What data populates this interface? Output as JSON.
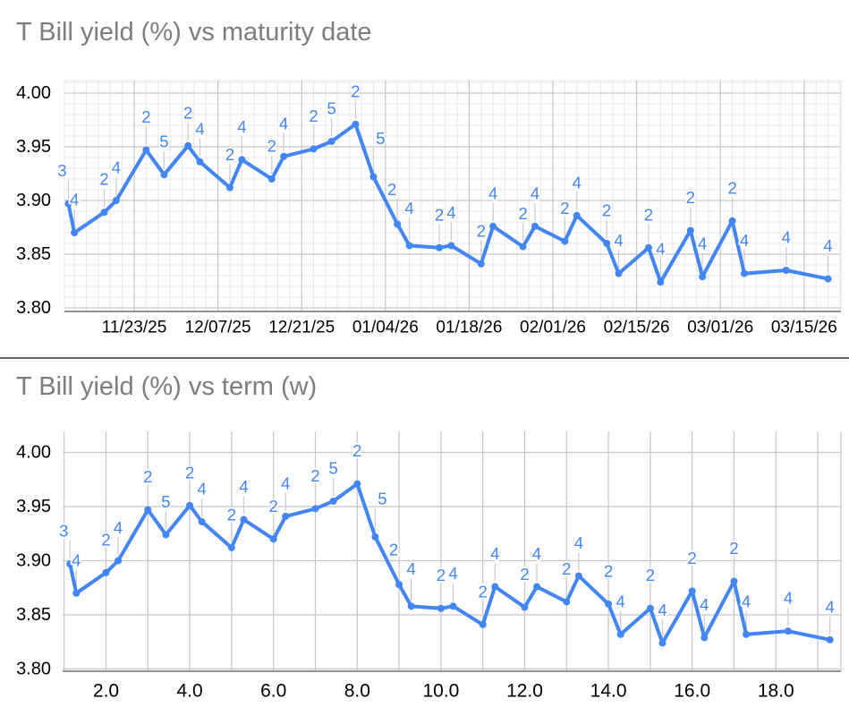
{
  "style": {
    "series_color": "#4285f4",
    "title_color": "#7d7d7d",
    "axis_text_color": "#000000",
    "grid_major_color": "#c6c6c6",
    "grid_minor_color": "#e9e9e9",
    "axis_line_color": "#858585",
    "leader_line_color": "#cccccc",
    "divider_color": "#666666",
    "background": "#ffffff"
  },
  "chart_data": [
    {
      "type": "line",
      "title": "T Bill yield (%) vs maturity date",
      "xlabel": "maturity date",
      "ylabel": "T Bill yield (%)",
      "legend": "none",
      "grid": "minor-and-major",
      "x_tick_labels": [
        "11/23/25",
        "12/07/25",
        "12/21/25",
        "01/04/26",
        "01/18/26",
        "02/01/26",
        "02/15/26",
        "03/01/26",
        "03/15/26"
      ],
      "y_tick_labels": [
        "4.00",
        "3.95",
        "3.90",
        "3.85",
        "3.80"
      ],
      "ylim": [
        3.795,
        4.012
      ],
      "points": [
        {
          "x": "11/12/25",
          "y": 3.897,
          "label": "3"
        },
        {
          "x": "11/13/25",
          "y": 3.87,
          "label": "4"
        },
        {
          "x": "11/18/25",
          "y": 3.889,
          "label": "2"
        },
        {
          "x": "11/20/25",
          "y": 3.9,
          "label": "4"
        },
        {
          "x": "11/25/25",
          "y": 3.947,
          "label": "2"
        },
        {
          "x": "11/28/25",
          "y": 3.924,
          "label": "5"
        },
        {
          "x": "12/02/25",
          "y": 3.951,
          "label": "2"
        },
        {
          "x": "12/04/25",
          "y": 3.936,
          "label": "4"
        },
        {
          "x": "12/09/25",
          "y": 3.912,
          "label": "2"
        },
        {
          "x": "12/11/25",
          "y": 3.938,
          "label": "4"
        },
        {
          "x": "12/16/25",
          "y": 3.92,
          "label": "2"
        },
        {
          "x": "12/18/25",
          "y": 3.941,
          "label": "4"
        },
        {
          "x": "12/23/25",
          "y": 3.948,
          "label": "2"
        },
        {
          "x": "12/26/25",
          "y": 3.955,
          "label": "5"
        },
        {
          "x": "12/30/25",
          "y": 3.971,
          "label": "2"
        },
        {
          "x": "01/02/26",
          "y": 3.922,
          "label": "5"
        },
        {
          "x": "01/06/26",
          "y": 3.878,
          "label": "2"
        },
        {
          "x": "01/08/26",
          "y": 3.858,
          "label": "4"
        },
        {
          "x": "01/13/26",
          "y": 3.856,
          "label": "2"
        },
        {
          "x": "01/15/26",
          "y": 3.858,
          "label": "4"
        },
        {
          "x": "01/20/26",
          "y": 3.841,
          "label": "2"
        },
        {
          "x": "01/22/26",
          "y": 3.876,
          "label": "4"
        },
        {
          "x": "01/27/26",
          "y": 3.857,
          "label": "2"
        },
        {
          "x": "01/29/26",
          "y": 3.876,
          "label": "4"
        },
        {
          "x": "02/03/26",
          "y": 3.862,
          "label": "2"
        },
        {
          "x": "02/05/26",
          "y": 3.886,
          "label": "4"
        },
        {
          "x": "02/10/26",
          "y": 3.86,
          "label": "2"
        },
        {
          "x": "02/12/26",
          "y": 3.832,
          "label": "4"
        },
        {
          "x": "02/17/26",
          "y": 3.856,
          "label": "2"
        },
        {
          "x": "02/19/26",
          "y": 3.824,
          "label": "4"
        },
        {
          "x": "02/24/26",
          "y": 3.872,
          "label": "2"
        },
        {
          "x": "02/26/26",
          "y": 3.829,
          "label": "4"
        },
        {
          "x": "03/03/26",
          "y": 3.881,
          "label": "2"
        },
        {
          "x": "03/05/26",
          "y": 3.832,
          "label": "4"
        },
        {
          "x": "03/12/26",
          "y": 3.835,
          "label": "4"
        },
        {
          "x": "03/19/26",
          "y": 3.827,
          "label": "4"
        }
      ]
    },
    {
      "type": "line",
      "title": "T Bill yield (%) vs term (w)",
      "xlabel": "term (w)",
      "ylabel": "T Bill yield (%)",
      "legend": "none",
      "grid": "major-only",
      "x_tick_labels": [
        "2.0",
        "4.0",
        "6.0",
        "8.0",
        "10.0",
        "12.0",
        "14.0",
        "16.0",
        "18.0"
      ],
      "y_tick_labels": [
        "4.00",
        "3.95",
        "3.90",
        "3.85",
        "3.80"
      ],
      "xlim": [
        0.96,
        19.56
      ],
      "ylim": [
        3.796,
        4.02
      ],
      "points": [
        {
          "x": 1.14,
          "y": 3.897,
          "label": "3"
        },
        {
          "x": 1.29,
          "y": 3.87,
          "label": "4"
        },
        {
          "x": 2.0,
          "y": 3.889,
          "label": "2"
        },
        {
          "x": 2.29,
          "y": 3.9,
          "label": "4"
        },
        {
          "x": 3.0,
          "y": 3.947,
          "label": "2"
        },
        {
          "x": 3.43,
          "y": 3.924,
          "label": "5"
        },
        {
          "x": 4.0,
          "y": 3.951,
          "label": "2"
        },
        {
          "x": 4.29,
          "y": 3.936,
          "label": "4"
        },
        {
          "x": 5.0,
          "y": 3.912,
          "label": "2"
        },
        {
          "x": 5.29,
          "y": 3.938,
          "label": "4"
        },
        {
          "x": 6.0,
          "y": 3.92,
          "label": "2"
        },
        {
          "x": 6.29,
          "y": 3.941,
          "label": "4"
        },
        {
          "x": 7.0,
          "y": 3.948,
          "label": "2"
        },
        {
          "x": 7.43,
          "y": 3.955,
          "label": "5"
        },
        {
          "x": 8.0,
          "y": 3.971,
          "label": "2"
        },
        {
          "x": 8.43,
          "y": 3.922,
          "label": "5"
        },
        {
          "x": 9.0,
          "y": 3.878,
          "label": "2"
        },
        {
          "x": 9.29,
          "y": 3.858,
          "label": "4"
        },
        {
          "x": 10.0,
          "y": 3.856,
          "label": "2"
        },
        {
          "x": 10.29,
          "y": 3.858,
          "label": "4"
        },
        {
          "x": 11.0,
          "y": 3.841,
          "label": "2"
        },
        {
          "x": 11.29,
          "y": 3.876,
          "label": "4"
        },
        {
          "x": 12.0,
          "y": 3.857,
          "label": "2"
        },
        {
          "x": 12.29,
          "y": 3.876,
          "label": "4"
        },
        {
          "x": 13.0,
          "y": 3.862,
          "label": "2"
        },
        {
          "x": 13.29,
          "y": 3.886,
          "label": "4"
        },
        {
          "x": 14.0,
          "y": 3.86,
          "label": "2"
        },
        {
          "x": 14.29,
          "y": 3.832,
          "label": "4"
        },
        {
          "x": 15.0,
          "y": 3.856,
          "label": "2"
        },
        {
          "x": 15.29,
          "y": 3.824,
          "label": "4"
        },
        {
          "x": 16.0,
          "y": 3.872,
          "label": "2"
        },
        {
          "x": 16.29,
          "y": 3.829,
          "label": "4"
        },
        {
          "x": 17.0,
          "y": 3.881,
          "label": "2"
        },
        {
          "x": 17.29,
          "y": 3.832,
          "label": "4"
        },
        {
          "x": 18.29,
          "y": 3.835,
          "label": "4"
        },
        {
          "x": 19.29,
          "y": 3.827,
          "label": "4"
        }
      ]
    }
  ]
}
